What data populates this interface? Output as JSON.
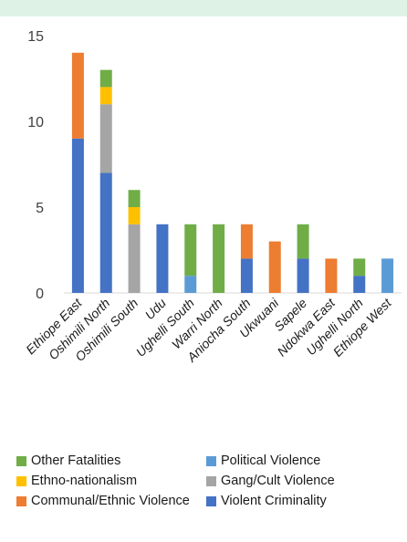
{
  "chart_data": {
    "type": "bar",
    "stacked": true,
    "categories": [
      "Ethiope East",
      "Oshimili North",
      "Oshimili South",
      "Udu",
      "Ughelli South",
      "Warri North",
      "Aniocha South",
      "Ukwuani",
      "Sapele",
      "Ndokwa East",
      "Ughelli North",
      "Ethiope West"
    ],
    "series": [
      {
        "name": "Violent Criminality",
        "color": "#4472c4",
        "values": [
          9,
          7,
          0,
          4,
          0,
          0,
          2,
          0,
          2,
          0,
          1,
          0
        ]
      },
      {
        "name": "Communal/Ethnic Violence",
        "color": "#ed7d31",
        "values": [
          5,
          0,
          0,
          0,
          0,
          0,
          2,
          3,
          0,
          2,
          0,
          0
        ]
      },
      {
        "name": "Gang/Cult Violence",
        "color": "#a5a5a5",
        "values": [
          0,
          4,
          4,
          0,
          0,
          0,
          0,
          0,
          0,
          0,
          0,
          0
        ]
      },
      {
        "name": "Ethno-nationalism",
        "color": "#ffc000",
        "values": [
          0,
          1,
          1,
          0,
          0,
          0,
          0,
          0,
          0,
          0,
          0,
          0
        ]
      },
      {
        "name": "Political Violence",
        "color": "#5b9bd5",
        "values": [
          0,
          0,
          0,
          0,
          1,
          0,
          0,
          0,
          0,
          0,
          0,
          2
        ]
      },
      {
        "name": "Other Fatalities",
        "color": "#70ad47",
        "values": [
          0,
          1,
          1,
          0,
          3,
          4,
          0,
          0,
          2,
          0,
          1,
          0
        ]
      }
    ],
    "yticks": [
      0,
      5,
      10,
      15
    ],
    "ylim": [
      0,
      15
    ],
    "grid": false,
    "legend_position": "bottom",
    "legend_order": [
      "Other Fatalities",
      "Political Violence",
      "Ethno-nationalism",
      "Gang/Cult Violence",
      "Communal/Ethnic Violence",
      "Violent Criminality"
    ]
  }
}
